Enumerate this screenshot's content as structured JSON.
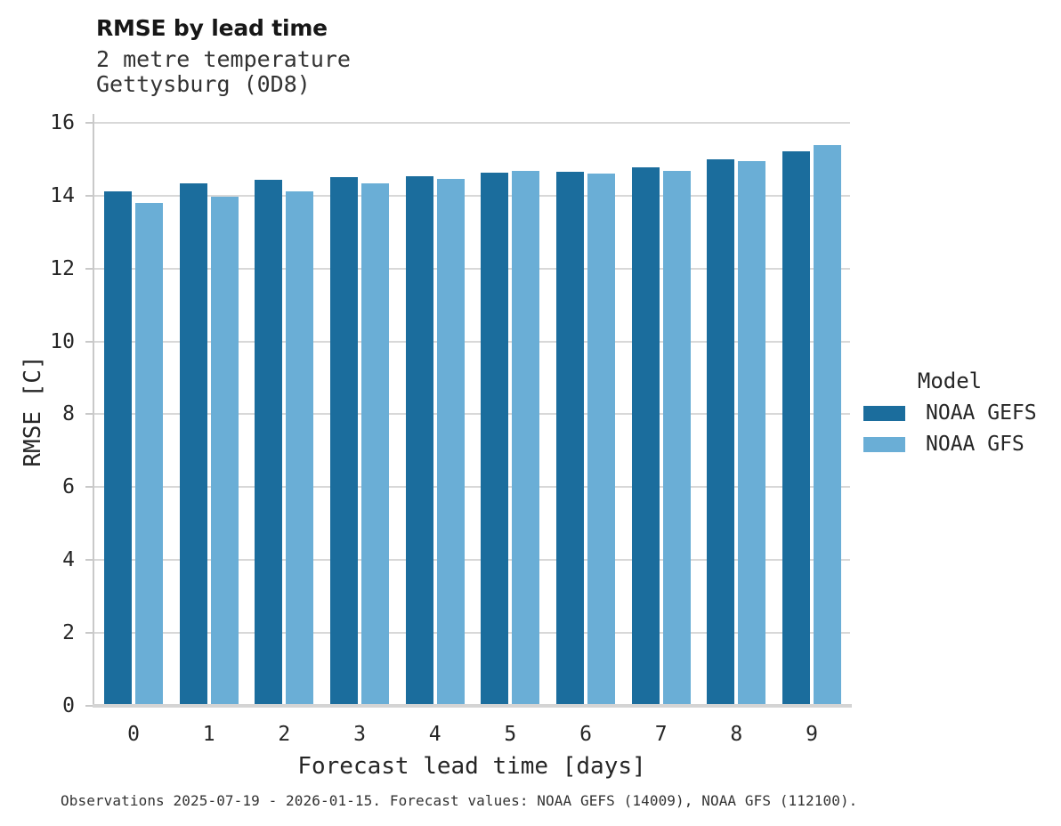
{
  "chart_data": {
    "type": "bar",
    "title": "RMSE by lead time",
    "subtitle": [
      "2 metre temperature",
      "Gettysburg (0D8)"
    ],
    "categories": [
      "0",
      "1",
      "2",
      "3",
      "4",
      "5",
      "6",
      "7",
      "8",
      "9"
    ],
    "series": [
      {
        "name": "NOAA GEFS",
        "color": "#1b6d9d",
        "values": [
          14.11,
          14.34,
          14.43,
          14.5,
          14.53,
          14.63,
          14.66,
          14.77,
          15.0,
          15.22
        ]
      },
      {
        "name": "NOAA GFS",
        "color": "#6aaed6",
        "values": [
          13.81,
          13.96,
          14.13,
          14.35,
          14.47,
          14.67,
          14.61,
          14.69,
          14.96,
          15.4
        ]
      }
    ],
    "xlabel": "Forecast lead time [days]",
    "ylabel": "RMSE [C]",
    "ylim": [
      0,
      16
    ],
    "ytick_step": 2,
    "grid": true,
    "legend_title": "Model",
    "legend_position": "right"
  },
  "caption": "Observations 2025-07-19 - 2026-01-15. Forecast values: NOAA GEFS (14009), NOAA GFS (112100)."
}
